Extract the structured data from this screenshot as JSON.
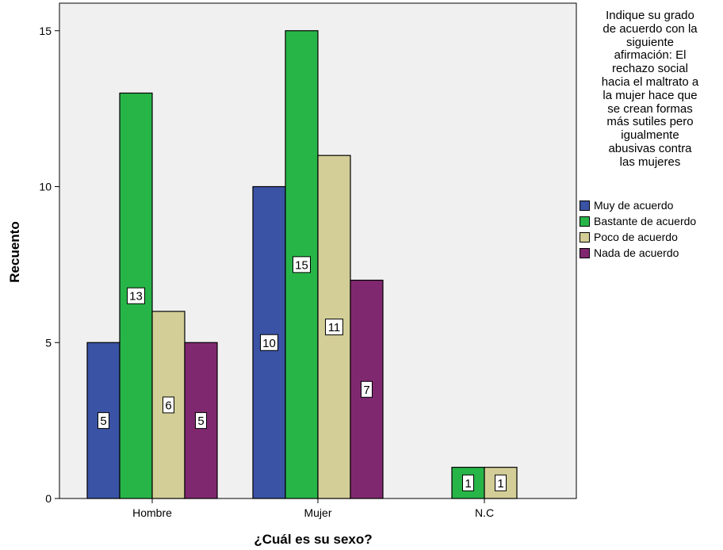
{
  "chart_data": {
    "type": "bar",
    "categories": [
      "Hombre",
      "Mujer",
      "N.C"
    ],
    "series": [
      {
        "name": "Muy de acuerdo",
        "values": [
          5,
          10,
          0
        ]
      },
      {
        "name": "Bastante de acuerdo",
        "values": [
          13,
          15,
          1
        ]
      },
      {
        "name": "Poco de acuerdo",
        "values": [
          6,
          11,
          1
        ]
      },
      {
        "name": "Nada de acuerdo",
        "values": [
          5,
          7,
          0
        ]
      }
    ],
    "xlabel": "¿Cuál es su sexo?",
    "ylabel": "Recuento",
    "ylim": [
      0,
      16
    ],
    "yticks": [
      "0",
      "5",
      "10",
      "15"
    ],
    "grid": false,
    "legend_placement": "right",
    "legend_title_lines": [
      "Indique su grado",
      "de acuerdo con la",
      "siguiente",
      "afirmación: El",
      "rechazo social",
      "hacia el maltrato a",
      "la mujer hace que",
      "se crean formas",
      "más sutiles pero",
      "igualmente",
      "abusivas contra",
      "las mujeres"
    ],
    "colors": [
      "#3A53A4",
      "#28B548",
      "#D3CE97",
      "#80286F"
    ],
    "plot_background": "#F0F0F0"
  }
}
